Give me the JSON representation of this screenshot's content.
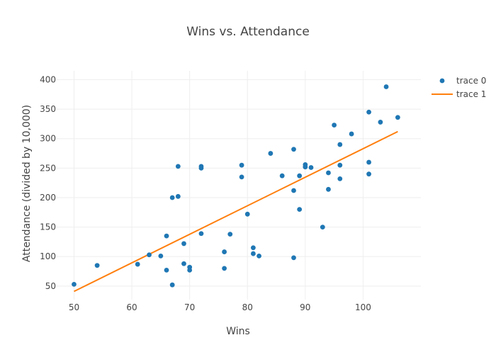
{
  "chart_data": {
    "type": "scatter",
    "title": "Wins vs. Attendance",
    "xlabel": "Wins",
    "ylabel": "Attendance (divided by 10,000)",
    "xlim": [
      47,
      110
    ],
    "ylim": [
      27,
      415
    ],
    "x_ticks": [
      50,
      60,
      70,
      80,
      90,
      100
    ],
    "y_ticks": [
      50,
      100,
      150,
      200,
      250,
      300,
      350,
      400
    ],
    "grid": true,
    "legend_position": "top-right",
    "colors": {
      "trace0": "#1f77b4",
      "trace1": "#ff7f0e",
      "grid": "#eeeeee",
      "text": "#444444"
    },
    "series": [
      {
        "name": "trace 0",
        "mode": "markers",
        "points": [
          [
            50,
            53
          ],
          [
            54,
            85
          ],
          [
            61,
            87
          ],
          [
            63,
            103
          ],
          [
            65,
            101
          ],
          [
            66,
            135
          ],
          [
            66,
            77
          ],
          [
            67,
            200
          ],
          [
            67,
            52
          ],
          [
            68,
            202
          ],
          [
            68,
            253
          ],
          [
            69,
            122
          ],
          [
            69,
            88
          ],
          [
            70,
            82
          ],
          [
            70,
            77
          ],
          [
            72,
            139
          ],
          [
            72,
            253
          ],
          [
            72,
            250
          ],
          [
            76,
            108
          ],
          [
            76,
            80
          ],
          [
            77,
            138
          ],
          [
            79,
            255
          ],
          [
            79,
            235
          ],
          [
            80,
            172
          ],
          [
            81,
            115
          ],
          [
            81,
            105
          ],
          [
            82,
            101
          ],
          [
            84,
            275
          ],
          [
            86,
            237
          ],
          [
            88,
            282
          ],
          [
            88,
            212
          ],
          [
            88,
            98
          ],
          [
            89,
            237
          ],
          [
            89,
            180
          ],
          [
            90,
            256
          ],
          [
            90,
            252
          ],
          [
            91,
            251
          ],
          [
            93,
            150
          ],
          [
            94,
            242
          ],
          [
            94,
            214
          ],
          [
            95,
            323
          ],
          [
            96,
            290
          ],
          [
            96,
            255
          ],
          [
            96,
            232
          ],
          [
            98,
            308
          ],
          [
            101,
            345
          ],
          [
            101,
            260
          ],
          [
            101,
            240
          ],
          [
            103,
            328
          ],
          [
            104,
            388
          ],
          [
            106,
            336
          ]
        ]
      },
      {
        "name": "trace 1",
        "mode": "lines",
        "points": [
          [
            50,
            41
          ],
          [
            106,
            312
          ]
        ]
      }
    ]
  }
}
